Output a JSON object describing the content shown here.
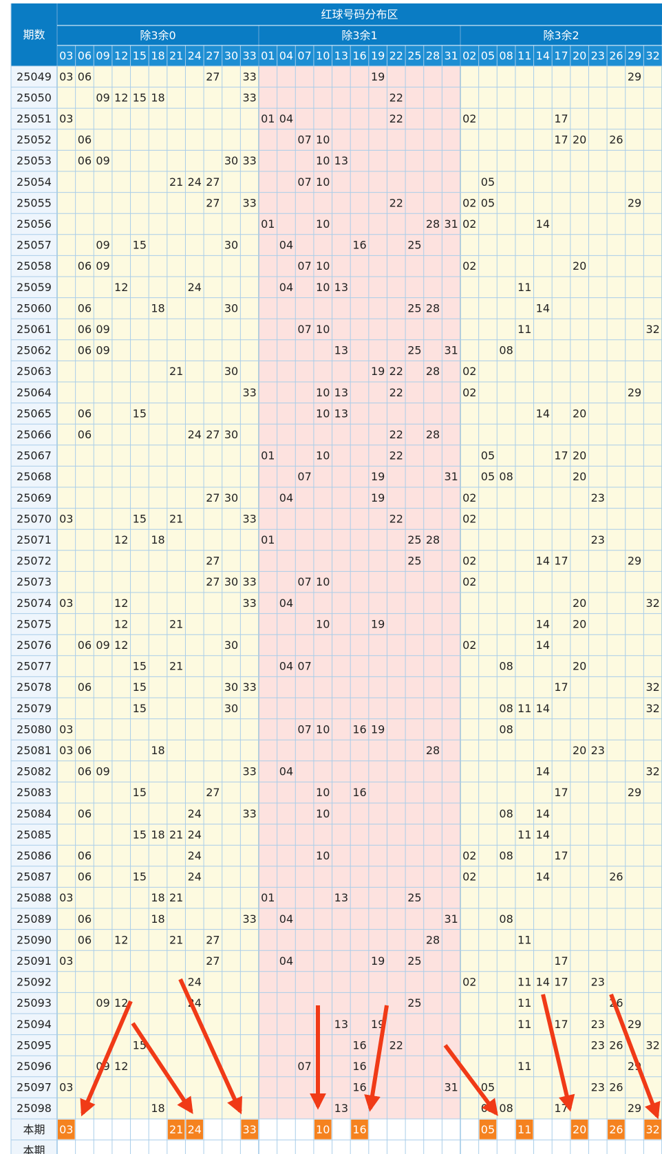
{
  "header": {
    "title": "红球号码分布区",
    "period_label": "期数",
    "groups": [
      {
        "name": "除3余0",
        "numbers": [
          "03",
          "06",
          "09",
          "12",
          "15",
          "18",
          "21",
          "24",
          "27",
          "30",
          "33"
        ]
      },
      {
        "name": "除3余1",
        "numbers": [
          "01",
          "04",
          "07",
          "10",
          "13",
          "16",
          "19",
          "22",
          "25",
          "28",
          "31"
        ]
      },
      {
        "name": "除3余2",
        "numbers": [
          "02",
          "05",
          "08",
          "11",
          "14",
          "17",
          "20",
          "23",
          "26",
          "29",
          "32"
        ]
      }
    ]
  },
  "rows": [
    {
      "period": "25049",
      "numbers": [
        "03",
        "06",
        "27",
        "33",
        "19",
        "29"
      ]
    },
    {
      "period": "25050",
      "numbers": [
        "09",
        "12",
        "15",
        "18",
        "33",
        "22"
      ]
    },
    {
      "period": "25051",
      "numbers": [
        "03",
        "01",
        "04",
        "22",
        "02",
        "17"
      ]
    },
    {
      "period": "25052",
      "numbers": [
        "06",
        "07",
        "10",
        "17",
        "20",
        "26"
      ]
    },
    {
      "period": "25053",
      "numbers": [
        "06",
        "09",
        "30",
        "33",
        "10",
        "13"
      ]
    },
    {
      "period": "25054",
      "numbers": [
        "21",
        "24",
        "27",
        "07",
        "10",
        "05"
      ]
    },
    {
      "period": "25055",
      "numbers": [
        "27",
        "33",
        "22",
        "02",
        "05",
        "29"
      ]
    },
    {
      "period": "25056",
      "numbers": [
        "01",
        "10",
        "28",
        "31",
        "02",
        "14"
      ]
    },
    {
      "period": "25057",
      "numbers": [
        "09",
        "15",
        "30",
        "04",
        "16",
        "25"
      ]
    },
    {
      "period": "25058",
      "numbers": [
        "06",
        "09",
        "07",
        "10",
        "02",
        "20"
      ]
    },
    {
      "period": "25059",
      "numbers": [
        "12",
        "24",
        "04",
        "10",
        "13",
        "11"
      ]
    },
    {
      "period": "25060",
      "numbers": [
        "06",
        "18",
        "30",
        "25",
        "28",
        "14"
      ]
    },
    {
      "period": "25061",
      "numbers": [
        "06",
        "09",
        "07",
        "10",
        "11",
        "32"
      ]
    },
    {
      "period": "25062",
      "numbers": [
        "06",
        "09",
        "13",
        "25",
        "31",
        "08"
      ]
    },
    {
      "period": "25063",
      "numbers": [
        "21",
        "30",
        "19",
        "22",
        "28",
        "02"
      ]
    },
    {
      "period": "25064",
      "numbers": [
        "33",
        "10",
        "13",
        "22",
        "02",
        "29"
      ]
    },
    {
      "period": "25065",
      "numbers": [
        "06",
        "15",
        "10",
        "13",
        "14",
        "20"
      ]
    },
    {
      "period": "25066",
      "numbers": [
        "06",
        "24",
        "27",
        "30",
        "22",
        "28"
      ]
    },
    {
      "period": "25067",
      "numbers": [
        "01",
        "10",
        "22",
        "05",
        "17",
        "20"
      ]
    },
    {
      "period": "25068",
      "numbers": [
        "07",
        "19",
        "31",
        "05",
        "08",
        "20"
      ]
    },
    {
      "period": "25069",
      "numbers": [
        "27",
        "30",
        "04",
        "19",
        "02",
        "23"
      ]
    },
    {
      "period": "25070",
      "numbers": [
        "03",
        "15",
        "21",
        "33",
        "22",
        "02"
      ]
    },
    {
      "period": "25071",
      "numbers": [
        "12",
        "18",
        "01",
        "25",
        "28",
        "23"
      ]
    },
    {
      "period": "25072",
      "numbers": [
        "27",
        "25",
        "02",
        "14",
        "17",
        "29"
      ]
    },
    {
      "period": "25073",
      "numbers": [
        "27",
        "30",
        "33",
        "07",
        "10",
        "02"
      ]
    },
    {
      "period": "25074",
      "numbers": [
        "03",
        "12",
        "33",
        "04",
        "20",
        "32"
      ]
    },
    {
      "period": "25075",
      "numbers": [
        "12",
        "21",
        "10",
        "19",
        "14",
        "20"
      ]
    },
    {
      "period": "25076",
      "numbers": [
        "06",
        "09",
        "12",
        "30",
        "02",
        "14"
      ]
    },
    {
      "period": "25077",
      "numbers": [
        "15",
        "21",
        "04",
        "07",
        "08",
        "20"
      ]
    },
    {
      "period": "25078",
      "numbers": [
        "06",
        "15",
        "30",
        "33",
        "17",
        "32"
      ]
    },
    {
      "period": "25079",
      "numbers": [
        "15",
        "30",
        "08",
        "11",
        "14",
        "32"
      ]
    },
    {
      "period": "25080",
      "numbers": [
        "03",
        "07",
        "10",
        "16",
        "19",
        "08"
      ]
    },
    {
      "period": "25081",
      "numbers": [
        "03",
        "06",
        "18",
        "28",
        "20",
        "23"
      ]
    },
    {
      "period": "25082",
      "numbers": [
        "06",
        "09",
        "33",
        "04",
        "14",
        "32"
      ]
    },
    {
      "period": "25083",
      "numbers": [
        "15",
        "27",
        "10",
        "16",
        "17",
        "29"
      ]
    },
    {
      "period": "25084",
      "numbers": [
        "06",
        "24",
        "33",
        "10",
        "08",
        "14"
      ]
    },
    {
      "period": "25085",
      "numbers": [
        "15",
        "18",
        "21",
        "24",
        "11",
        "14"
      ]
    },
    {
      "period": "25086",
      "numbers": [
        "06",
        "24",
        "10",
        "02",
        "08",
        "17"
      ]
    },
    {
      "period": "25087",
      "numbers": [
        "06",
        "15",
        "24",
        "02",
        "14",
        "26"
      ]
    },
    {
      "period": "25088",
      "numbers": [
        "03",
        "18",
        "21",
        "01",
        "13",
        "25"
      ]
    },
    {
      "period": "25089",
      "numbers": [
        "06",
        "18",
        "33",
        "04",
        "31",
        "08"
      ]
    },
    {
      "period": "25090",
      "numbers": [
        "06",
        "12",
        "21",
        "27",
        "28",
        "11"
      ]
    },
    {
      "period": "25091",
      "numbers": [
        "03",
        "27",
        "04",
        "19",
        "25",
        "17"
      ]
    },
    {
      "period": "25092",
      "numbers": [
        "24",
        "02",
        "11",
        "14",
        "17",
        "23"
      ]
    },
    {
      "period": "25093",
      "numbers": [
        "09",
        "12",
        "24",
        "25",
        "11",
        "26"
      ]
    },
    {
      "period": "25094",
      "numbers": [
        "13",
        "19",
        "11",
        "17",
        "23",
        "29"
      ]
    },
    {
      "period": "25095",
      "numbers": [
        "15",
        "16",
        "22",
        "23",
        "26",
        "32"
      ]
    },
    {
      "period": "25096",
      "numbers": [
        "09",
        "12",
        "07",
        "16",
        "11",
        "29"
      ]
    },
    {
      "period": "25097",
      "numbers": [
        "03",
        "16",
        "31",
        "05",
        "23",
        "26"
      ]
    },
    {
      "period": "25098",
      "numbers": [
        "18",
        "13",
        "05",
        "08",
        "17",
        "29"
      ]
    }
  ],
  "current": {
    "label": "本期",
    "numbers": [
      "03",
      "21",
      "24",
      "33",
      "10",
      "16",
      "05",
      "11",
      "20",
      "26",
      "32"
    ]
  },
  "next": {
    "label": "本期"
  }
}
